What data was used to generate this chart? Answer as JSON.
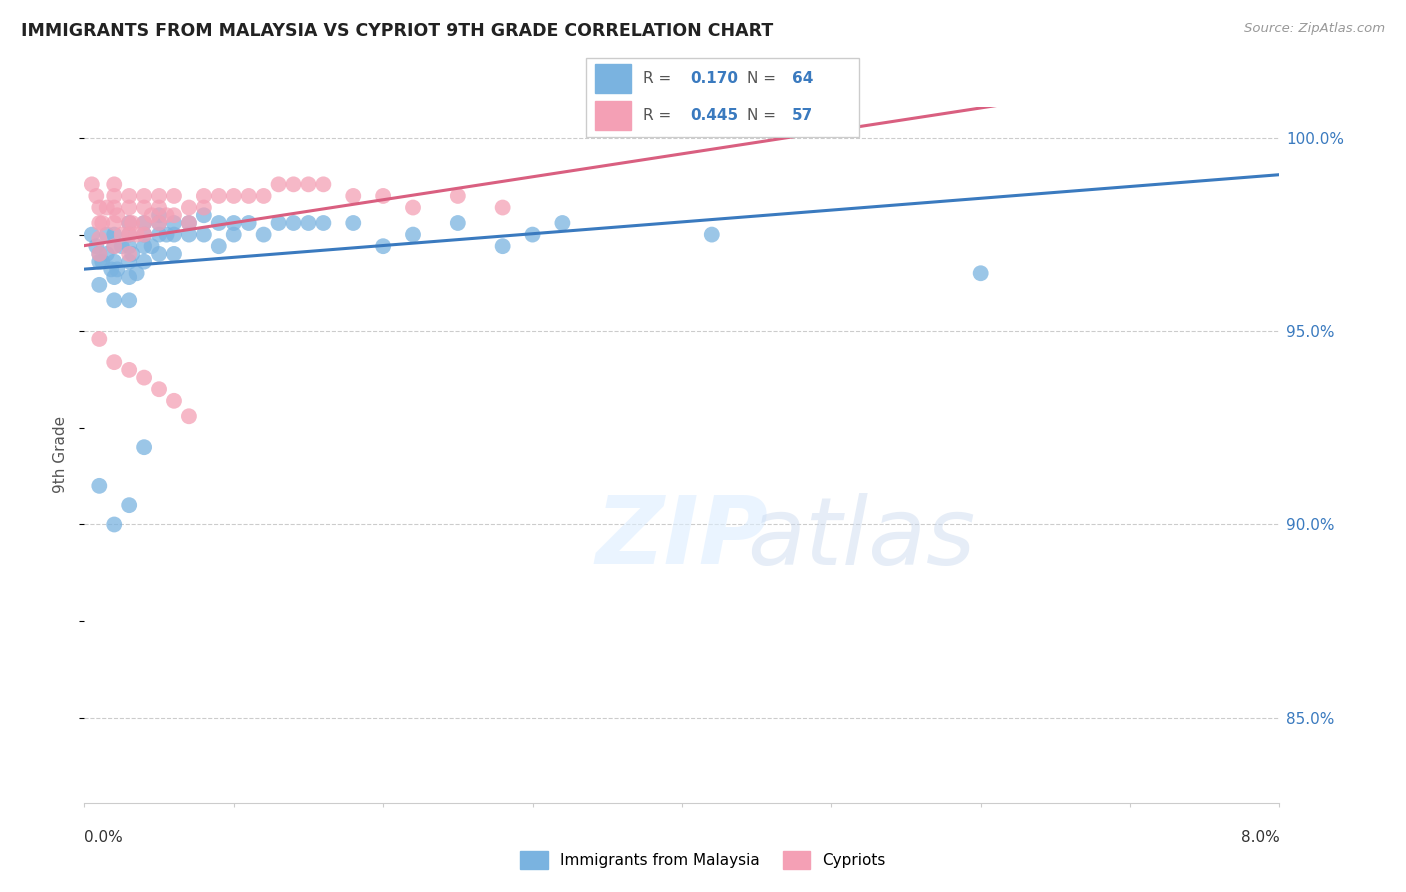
{
  "title": "IMMIGRANTS FROM MALAYSIA VS CYPRIOT 9TH GRADE CORRELATION CHART",
  "source": "Source: ZipAtlas.com",
  "ylabel": "9th Grade",
  "x_min": 0.0,
  "x_max": 0.08,
  "y_min": 0.828,
  "y_max": 1.008,
  "blue_r": 0.17,
  "blue_n": 64,
  "pink_r": 0.445,
  "pink_n": 57,
  "blue_color": "#7ab3e0",
  "pink_color": "#f4a0b5",
  "blue_line_color": "#3a7abf",
  "pink_line_color": "#d95f80",
  "legend_blue_label": "Immigrants from Malaysia",
  "legend_pink_label": "Cypriots",
  "blue_x": [
    0.0005,
    0.0008,
    0.001,
    0.001,
    0.001,
    0.0012,
    0.0015,
    0.0015,
    0.0018,
    0.002,
    0.002,
    0.002,
    0.002,
    0.002,
    0.0022,
    0.0025,
    0.003,
    0.003,
    0.003,
    0.003,
    0.003,
    0.003,
    0.0032,
    0.0035,
    0.004,
    0.004,
    0.004,
    0.004,
    0.0045,
    0.005,
    0.005,
    0.005,
    0.005,
    0.0055,
    0.006,
    0.006,
    0.006,
    0.007,
    0.007,
    0.008,
    0.008,
    0.009,
    0.009,
    0.01,
    0.01,
    0.011,
    0.012,
    0.013,
    0.014,
    0.015,
    0.016,
    0.018,
    0.02,
    0.022,
    0.025,
    0.028,
    0.03,
    0.032,
    0.042,
    0.06,
    0.001,
    0.002,
    0.003,
    0.004
  ],
  "blue_y": [
    0.975,
    0.972,
    0.97,
    0.968,
    0.962,
    0.968,
    0.975,
    0.97,
    0.966,
    0.975,
    0.972,
    0.968,
    0.964,
    0.958,
    0.966,
    0.972,
    0.978,
    0.975,
    0.972,
    0.968,
    0.964,
    0.958,
    0.97,
    0.965,
    0.978,
    0.975,
    0.972,
    0.968,
    0.972,
    0.98,
    0.978,
    0.975,
    0.97,
    0.975,
    0.978,
    0.975,
    0.97,
    0.978,
    0.975,
    0.98,
    0.975,
    0.978,
    0.972,
    0.978,
    0.975,
    0.978,
    0.975,
    0.978,
    0.978,
    0.978,
    0.978,
    0.978,
    0.972,
    0.975,
    0.978,
    0.972,
    0.975,
    0.978,
    0.975,
    0.965,
    0.91,
    0.9,
    0.905,
    0.92
  ],
  "pink_x": [
    0.0005,
    0.0008,
    0.001,
    0.001,
    0.001,
    0.001,
    0.0012,
    0.0015,
    0.002,
    0.002,
    0.002,
    0.002,
    0.002,
    0.0022,
    0.0025,
    0.003,
    0.003,
    0.003,
    0.003,
    0.003,
    0.0032,
    0.0035,
    0.004,
    0.004,
    0.004,
    0.004,
    0.0045,
    0.005,
    0.005,
    0.005,
    0.0055,
    0.006,
    0.006,
    0.007,
    0.007,
    0.008,
    0.008,
    0.009,
    0.01,
    0.011,
    0.012,
    0.013,
    0.014,
    0.015,
    0.016,
    0.018,
    0.02,
    0.022,
    0.025,
    0.028,
    0.001,
    0.002,
    0.003,
    0.004,
    0.005,
    0.006,
    0.007
  ],
  "pink_y": [
    0.988,
    0.985,
    0.982,
    0.978,
    0.974,
    0.97,
    0.978,
    0.982,
    0.988,
    0.985,
    0.982,
    0.978,
    0.972,
    0.98,
    0.975,
    0.985,
    0.982,
    0.978,
    0.975,
    0.97,
    0.978,
    0.975,
    0.985,
    0.982,
    0.978,
    0.975,
    0.98,
    0.985,
    0.982,
    0.978,
    0.98,
    0.985,
    0.98,
    0.982,
    0.978,
    0.985,
    0.982,
    0.985,
    0.985,
    0.985,
    0.985,
    0.988,
    0.988,
    0.988,
    0.988,
    0.985,
    0.985,
    0.982,
    0.985,
    0.982,
    0.948,
    0.942,
    0.94,
    0.938,
    0.935,
    0.932,
    0.928
  ]
}
